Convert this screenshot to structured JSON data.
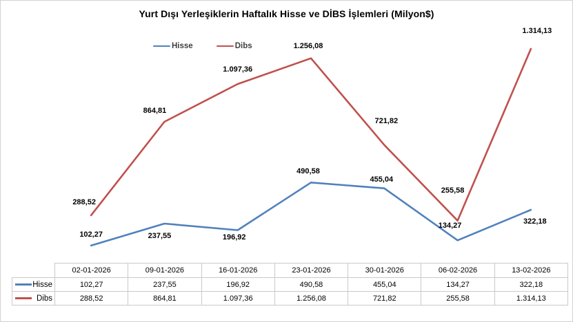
{
  "chart_data": {
    "type": "line",
    "title": "Yurt Dışı Yerleşiklerin Haftalık Hisse ve DİBS İşlemleri (Milyon$)",
    "xlabel": "",
    "ylabel": "",
    "ylim": [
      0,
      1400
    ],
    "grid": false,
    "axes_hidden": true,
    "legend_position": "top",
    "has_data_table": true,
    "categories": [
      "02-01-2026",
      "09-01-2026",
      "16-01-2026",
      "23-01-2026",
      "30-01-2026",
      "06-02-2026",
      "13-02-2026"
    ],
    "series": [
      {
        "name": "Hisse",
        "color": "#4F81BD",
        "values": [
          102.27,
          237.55,
          196.92,
          490.58,
          455.04,
          134.27,
          322.18
        ],
        "labels": [
          "102,27",
          "237,55",
          "196,92",
          "490,58",
          "455,04",
          "134,27",
          "322,18"
        ]
      },
      {
        "name": "Dibs",
        "color": "#C0504D",
        "values": [
          288.52,
          864.81,
          1097.36,
          1256.08,
          721.82,
          255.58,
          1314.13
        ],
        "labels": [
          "288,52",
          "864,81",
          "1.097,36",
          "1.256,08",
          "721,82",
          "255,58",
          "1.314,13"
        ]
      }
    ]
  }
}
